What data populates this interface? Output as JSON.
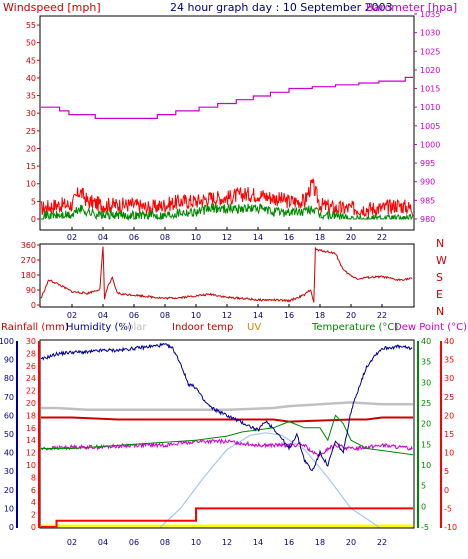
{
  "colors": {
    "windspeed": "#cc0000",
    "gust": "#ff0000",
    "wind_avg": "#008800",
    "barometer": "#cc00cc",
    "direction": "#cc0000",
    "rainfall": "#ff0000",
    "humidity": "#000099",
    "solar": "#c0c0c0",
    "indoor_temp": "#cc0000",
    "uv": "#cc8800",
    "temperature": "#008800",
    "dew_point": "#cc00cc",
    "solar_curve": "#a8c8f0",
    "tick_text": "#000080",
    "rain_baseline": "#ffff00"
  },
  "header": {
    "windspeed_label": "Windspeed [mph]",
    "title": "24 hour graph day : 10 September 2003",
    "barometer_label": "Barometer [hpa]"
  },
  "legend": {
    "rainfall": "Rainfall (mm)",
    "humidity": "Humidity (%)",
    "solar": "Solar",
    "indoor_temp": "Indoor temp",
    "uv": "UV",
    "temperature": "Temperature (°C)",
    "dew_point": "Dew Point (°C)"
  },
  "chart_data": [
    {
      "type": "line",
      "title": "24 hour graph day : 10 September 2003",
      "xlabel": "",
      "x_ticks": [
        "02",
        "04",
        "06",
        "08",
        "10",
        "12",
        "14",
        "16",
        "18",
        "20",
        "22"
      ],
      "xlim": [
        0,
        24
      ],
      "y_left_label": "Windspeed [mph]",
      "y_left_ticks": [
        0,
        5,
        10,
        15,
        20,
        25,
        30,
        35,
        40,
        45,
        50,
        55
      ],
      "ylim_left": [
        0,
        58
      ],
      "y_right_label": "Barometer [hpa]",
      "y_right_ticks": [
        980,
        985,
        990,
        995,
        1000,
        1005,
        1010,
        1015,
        1020,
        1025,
        1030,
        1035
      ],
      "ylim_right": [
        980,
        1035
      ],
      "series": [
        {
          "name": "Barometer [hpa]",
          "axis": "right",
          "x": [
            0,
            1.2,
            1.2,
            1.8,
            1.8,
            3.5,
            3.5,
            7.5,
            7.5,
            8.7,
            8.7,
            10.2,
            10.2,
            11.4,
            11.4,
            12.6,
            12.6,
            13.7,
            13.7,
            14.8,
            14.8,
            16.0,
            16.0,
            17.5,
            17.5,
            19.0,
            19.0,
            20.5,
            20.5,
            21.8,
            21.8,
            23.5,
            23.5,
            24
          ],
          "values": [
            1010,
            1010,
            1009,
            1009,
            1008,
            1008,
            1007,
            1007,
            1008,
            1008,
            1009,
            1009,
            1010,
            1010,
            1011,
            1011,
            1012,
            1012,
            1013,
            1013,
            1014,
            1014,
            1015,
            1015,
            1015.5,
            1015.5,
            1016,
            1016,
            1016.5,
            1016.5,
            1017,
            1017,
            1018,
            1018
          ]
        },
        {
          "name": "Gust",
          "axis": "left",
          "x": [
            0,
            1,
            2,
            2.5,
            3,
            4,
            5,
            6,
            7,
            8,
            9,
            10,
            11,
            12,
            13,
            14,
            15,
            16,
            17,
            17.5,
            18,
            19,
            20,
            21,
            22,
            23,
            24
          ],
          "values": [
            3,
            4,
            4,
            8,
            5,
            4,
            4,
            4,
            3,
            4,
            5,
            5,
            6,
            6,
            7,
            7,
            6,
            5,
            5,
            10,
            4,
            3,
            3,
            3,
            3,
            4,
            3
          ]
        },
        {
          "name": "Windspeed",
          "axis": "left",
          "x": [
            0,
            1,
            2,
            2.5,
            3,
            4,
            5,
            6,
            7,
            8,
            9,
            10,
            11,
            12,
            13,
            14,
            15,
            16,
            17,
            17.5,
            18,
            19,
            20,
            21,
            22,
            23,
            24
          ],
          "values": [
            1,
            1,
            1,
            3,
            2,
            1,
            1,
            1,
            1,
            1,
            2,
            2,
            3,
            3,
            3,
            3,
            2,
            2,
            2,
            3,
            1,
            1,
            0,
            0,
            0,
            0,
            0
          ]
        }
      ]
    },
    {
      "type": "line",
      "x_ticks": [
        "02",
        "04",
        "06",
        "08",
        "10",
        "12",
        "14",
        "16",
        "18",
        "20",
        "22"
      ],
      "xlim": [
        0,
        24
      ],
      "y_left_ticks": [
        0,
        90,
        180,
        270,
        360
      ],
      "ylim": [
        0,
        360
      ],
      "y_right_ticks": [
        "N",
        "W",
        "S",
        "E",
        "N"
      ],
      "series": [
        {
          "name": "Wind direction",
          "x": [
            0,
            0.5,
            1,
            2,
            3,
            3.8,
            4.0,
            4.1,
            4.3,
            4.6,
            4.9,
            5.2,
            6,
            7,
            8,
            9,
            10,
            11,
            12,
            13,
            14,
            15,
            16,
            17.0,
            17.4,
            17.6,
            17.7,
            17.8,
            18.5,
            19.0,
            19.5,
            20,
            20.5,
            21,
            22,
            23,
            24
          ],
          "values": [
            40,
            150,
            130,
            80,
            70,
            95,
            350,
            40,
            110,
            160,
            75,
            65,
            60,
            50,
            40,
            45,
            55,
            65,
            45,
            40,
            30,
            30,
            25,
            60,
            95,
            10,
            340,
            330,
            320,
            310,
            210,
            175,
            155,
            165,
            170,
            150,
            160
          ]
        }
      ]
    },
    {
      "type": "line",
      "x_ticks": [
        "02",
        "04",
        "06",
        "08",
        "10",
        "12",
        "14",
        "16",
        "18",
        "20",
        "22"
      ],
      "xlim": [
        0,
        24
      ],
      "axes": [
        {
          "name": "Humidity (%)",
          "ticks": [
            0,
            10,
            20,
            30,
            40,
            50,
            60,
            70,
            80,
            90,
            100
          ]
        },
        {
          "name": "Rainfall (mm)",
          "ticks": [
            0,
            2,
            4,
            6,
            8,
            10,
            12,
            14,
            16,
            18,
            20,
            22,
            24,
            26,
            28,
            30
          ]
        },
        {
          "name": "Temperature (°C)",
          "ticks": [
            -5,
            0,
            5,
            10,
            15,
            20,
            25,
            30,
            35,
            40
          ]
        },
        {
          "name": "Dew Point (°C)",
          "ticks": [
            -10,
            -5,
            0,
            5,
            10,
            15,
            20,
            25,
            30,
            35,
            40
          ]
        }
      ],
      "series": [
        {
          "name": "Humidity (%)",
          "axis": "Humidity (%)",
          "x": [
            0,
            1,
            2,
            3,
            4,
            5,
            6,
            7,
            8,
            8.5,
            9,
            9.5,
            10,
            10.5,
            11,
            12,
            13,
            14,
            14.5,
            15,
            15.5,
            16,
            16.5,
            17,
            17.5,
            18,
            18.5,
            19,
            19.5,
            20,
            20.5,
            21,
            21.5,
            22,
            23,
            24
          ],
          "values": [
            90,
            93,
            94,
            94,
            95,
            95,
            96,
            97,
            98,
            96,
            88,
            77,
            75,
            68,
            64,
            60,
            56,
            52,
            57,
            53,
            48,
            42,
            50,
            36,
            30,
            40,
            33,
            46,
            40,
            62,
            75,
            86,
            92,
            96,
            97,
            96
          ]
        },
        {
          "name": "Solar",
          "axis": "Humidity (%)",
          "x": [
            0,
            1,
            3,
            6,
            9,
            12,
            15,
            16,
            18,
            20,
            22,
            24
          ],
          "values": [
            64,
            64,
            63,
            63,
            63,
            63,
            64,
            65,
            66,
            67,
            66,
            66
          ]
        },
        {
          "name": "Indoor temp",
          "axis": "Temperature (°C)",
          "x": [
            0,
            2,
            5,
            10,
            15,
            16,
            20,
            21,
            22,
            24
          ],
          "values": [
            21.5,
            21.5,
            21,
            21,
            21,
            20.5,
            21,
            21,
            21.5,
            21.5
          ]
        },
        {
          "name": "Temperature (°C)",
          "axis": "Temperature (°C)",
          "x": [
            0,
            2,
            4,
            6,
            8,
            10,
            11,
            12,
            13,
            14,
            15,
            16,
            17,
            18,
            18.5,
            19,
            19.5,
            20,
            20.5,
            21,
            22,
            23,
            24
          ],
          "values": [
            14,
            14,
            14.5,
            15,
            15.5,
            16,
            16.5,
            17,
            18,
            18.5,
            19,
            20.5,
            19,
            19,
            16,
            22,
            20,
            16,
            15,
            14,
            13.5,
            13,
            12.5
          ]
        },
        {
          "name": "Dew Point (°C)",
          "axis": "Dew Point (°C)",
          "x": [
            0,
            2,
            4,
            6,
            8,
            10,
            12,
            13,
            14,
            15,
            16,
            17,
            17.5,
            18,
            18.5,
            19,
            20,
            21,
            22,
            23,
            24
          ],
          "values": [
            11,
            11.5,
            11.5,
            12,
            12,
            13,
            13,
            12.5,
            12,
            12,
            12,
            12,
            10,
            9,
            11,
            12,
            11,
            11.5,
            12,
            11.5,
            11
          ]
        },
        {
          "name": "Rainfall (mm)",
          "axis": "Rainfall (mm)",
          "x": [
            0,
            1,
            1,
            10,
            10,
            24
          ],
          "values": [
            0,
            0,
            1,
            1,
            3,
            3
          ]
        },
        {
          "name": "Solar curve",
          "axis": "Rainfall (mm)",
          "x": [
            7.7,
            9,
            10.5,
            12,
            13.5,
            14.5,
            15.5,
            17,
            18.5,
            20,
            21.8
          ],
          "values": [
            0,
            3,
            8,
            12.5,
            14.8,
            15.2,
            14.8,
            12.5,
            8,
            3,
            0
          ]
        }
      ]
    }
  ]
}
